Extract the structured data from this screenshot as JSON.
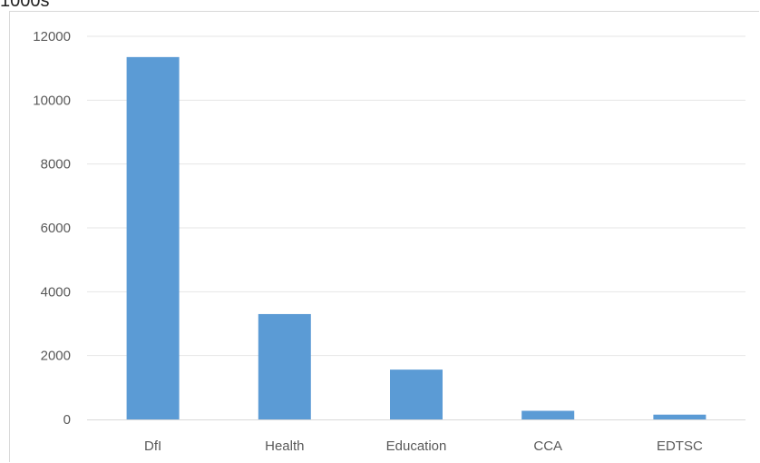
{
  "chart_data": {
    "type": "bar",
    "unit_label": "1000s",
    "categories": [
      "DfI",
      "Health",
      "Education",
      "CCA",
      "EDTSC"
    ],
    "values": [
      11350,
      3300,
      1560,
      270,
      150
    ],
    "ylim": [
      0,
      12000
    ],
    "yticks": [
      0,
      2000,
      4000,
      6000,
      8000,
      10000,
      12000
    ],
    "grid": true,
    "legend": "none",
    "bar_color": "#5b9bd5",
    "grid_color": "#e6e6e6",
    "axis_color": "#d9d9d9",
    "text_color": "#595959"
  }
}
